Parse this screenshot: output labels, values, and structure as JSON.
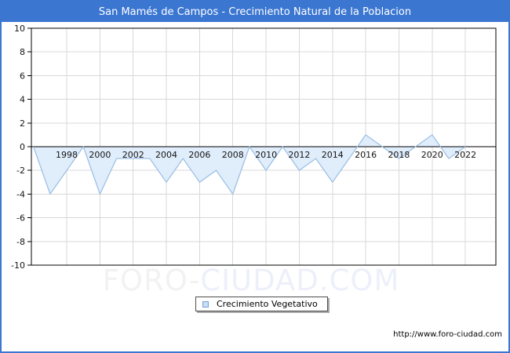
{
  "window": {
    "border_color": "#3b76d1",
    "background": "#ffffff"
  },
  "title_bar": {
    "bg": "#3b76d1",
    "fg": "#ffffff"
  },
  "chart_data": {
    "type": "area",
    "title": "San Mamés de Campos - Crecimiento Natural de la Poblacion",
    "series_name": "Crecimiento Vegetativo",
    "x": [
      1996,
      1997,
      1998,
      1999,
      2000,
      2001,
      2002,
      2003,
      2004,
      2005,
      2006,
      2007,
      2008,
      2009,
      2010,
      2011,
      2012,
      2013,
      2014,
      2015,
      2016,
      2017,
      2018,
      2019,
      2020,
      2021,
      2022
    ],
    "values": [
      0,
      -4,
      -2,
      0,
      -4,
      -1,
      -1,
      -1,
      -3,
      -1,
      -3,
      -2,
      -4,
      0,
      -2,
      0,
      -2,
      -1,
      -3,
      -1,
      1,
      0,
      -1,
      0,
      1,
      -1,
      0
    ],
    "xlim": [
      1996,
      2024
    ],
    "ylim": [
      -10,
      10
    ],
    "grid": true,
    "legend_position": "bottom-center",
    "x_tick_labels": [
      "1998",
      "2000",
      "2002",
      "2004",
      "2006",
      "2008",
      "2010",
      "2012",
      "2014",
      "2016",
      "2018",
      "2020",
      "2022"
    ],
    "y_tick_labels": [
      "10",
      "8",
      "6",
      "4",
      "2",
      "0",
      "-2",
      "-4",
      "-6",
      "-8",
      "-10"
    ],
    "colors": {
      "line": "#9fc1e5",
      "fill": "#e0edfb",
      "grid": "#d8d8d8",
      "axis": "#000000",
      "zero_line": "#000000",
      "tick_text": "#141414"
    }
  },
  "legend": {
    "label": "Crecimiento Vegetativo",
    "marker_fill": "#c9ddf3",
    "marker_border": "#78a2d2"
  },
  "watermark": {
    "part1": "FORO-",
    "part2": "CIUDAD.COM",
    "color1": "#f2f2f2",
    "color2": "#edf0fa"
  },
  "footer": {
    "url": "http://www.foro-ciudad.com"
  }
}
